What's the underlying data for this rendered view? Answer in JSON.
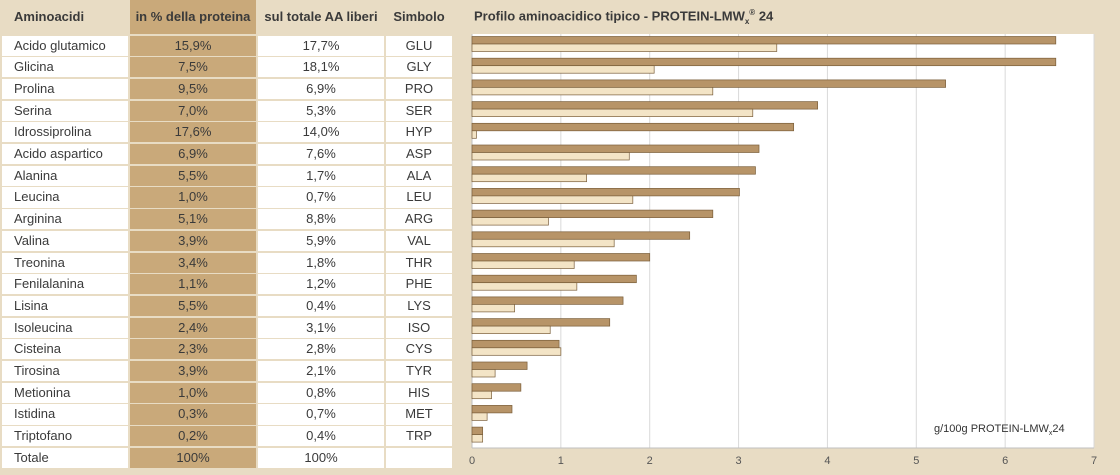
{
  "table": {
    "headers": [
      "Aminoacidi",
      "in % della proteina",
      "sul totale AA liberi",
      "Simbolo"
    ],
    "rows": [
      [
        "Acido glutamico",
        "15,9%",
        "17,7%",
        "GLU"
      ],
      [
        "Glicina",
        "7,5%",
        "18,1%",
        "GLY"
      ],
      [
        "Prolina",
        "9,5%",
        "6,9%",
        "PRO"
      ],
      [
        "Serina",
        "7,0%",
        "5,3%",
        "SER"
      ],
      [
        "Idrossiprolina",
        "17,6%",
        "14,0%",
        "HYP"
      ],
      [
        "Acido aspartico",
        "6,9%",
        "7,6%",
        "ASP"
      ],
      [
        "Alanina",
        "5,5%",
        "1,7%",
        "ALA"
      ],
      [
        "Leucina",
        "1,0%",
        "0,7%",
        "LEU"
      ],
      [
        "Arginina",
        "5,1%",
        "8,8%",
        "ARG"
      ],
      [
        "Valina",
        "3,9%",
        "5,9%",
        "VAL"
      ],
      [
        "Treonina",
        "3,4%",
        "1,8%",
        "THR"
      ],
      [
        "Fenilalanina",
        "1,1%",
        "1,2%",
        "PHE"
      ],
      [
        "Lisina",
        "5,5%",
        "0,4%",
        "LYS"
      ],
      [
        "Isoleucina",
        "2,4%",
        "3,1%",
        "ISO"
      ],
      [
        "Cisteina",
        "2,3%",
        "2,8%",
        "CYS"
      ],
      [
        "Tirosina",
        "3,9%",
        "2,1%",
        "TYR"
      ],
      [
        "Metionina",
        "1,0%",
        "0,8%",
        "HIS"
      ],
      [
        "Istidina",
        "0,3%",
        "0,7%",
        "MET"
      ],
      [
        "Triptofano",
        "0,2%",
        "0,4%",
        "TRP"
      ]
    ],
    "total": [
      "Totale",
      "100%",
      "100%",
      ""
    ]
  },
  "colors": {
    "background": "#e8dcc4",
    "col_highlight": "#c9a97a",
    "bar_dark": "#b79468",
    "bar_light": "#f3e4c6",
    "bar_stroke": "#7a5e3a"
  },
  "chart_data": {
    "type": "bar",
    "orientation": "horizontal",
    "title_main": "Profilo aminoacidico tipico - PROTEIN-LMW",
    "title_sub": "x",
    "title_sup": "®",
    "title_tail": " 24",
    "unit_main": "g/100g PROTEIN-LMW",
    "unit_sub": "x",
    "unit_tail": "24",
    "xlim": [
      0,
      7
    ],
    "xticks": [
      "0",
      "1",
      "2",
      "3",
      "4",
      "5",
      "6",
      "7"
    ],
    "grid": true,
    "series": [
      {
        "values": [
          6.57,
          6.57,
          5.33,
          3.89,
          3.62,
          3.23,
          3.19,
          3.01,
          2.71,
          2.45,
          2.0,
          1.85,
          1.7,
          1.55,
          0.98,
          0.62,
          0.55,
          0.45,
          0.12
        ]
      },
      {
        "values": [
          3.43,
          2.05,
          2.71,
          3.16,
          0.05,
          1.77,
          1.29,
          1.81,
          0.86,
          1.6,
          1.15,
          1.18,
          0.48,
          0.88,
          1.0,
          0.26,
          0.22,
          0.17,
          0.12
        ]
      }
    ]
  }
}
